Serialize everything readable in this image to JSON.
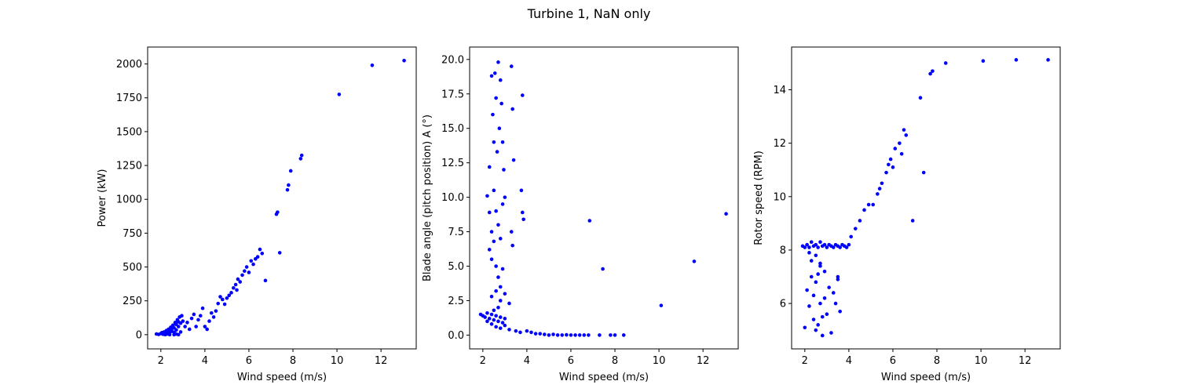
{
  "figure": {
    "title": "Turbine 1, NaN only"
  },
  "colors": {
    "point": "#0000ff",
    "axis": "#000000",
    "background": "#ffffff"
  },
  "chart_data": [
    {
      "type": "scatter",
      "xlabel": "Wind speed (m/s)",
      "ylabel": "Power (kW)",
      "xlim": [
        1.4,
        13.6
      ],
      "ylim": [
        -105,
        2125
      ],
      "xticks": [
        2,
        4,
        6,
        8,
        10,
        12
      ],
      "yticks": [
        0,
        250,
        500,
        750,
        1000,
        1250,
        1500,
        1750,
        2000
      ],
      "grid": false,
      "points": [
        [
          1.8,
          5
        ],
        [
          1.9,
          2
        ],
        [
          2.0,
          8
        ],
        [
          2.05,
          15
        ],
        [
          2.1,
          3
        ],
        [
          2.15,
          20
        ],
        [
          2.2,
          10
        ],
        [
          2.25,
          30
        ],
        [
          2.3,
          5
        ],
        [
          2.35,
          40
        ],
        [
          2.4,
          12
        ],
        [
          2.45,
          55
        ],
        [
          2.5,
          25
        ],
        [
          2.55,
          70
        ],
        [
          2.6,
          18
        ],
        [
          2.65,
          90
        ],
        [
          2.7,
          35
        ],
        [
          2.75,
          110
        ],
        [
          2.8,
          60
        ],
        [
          2.85,
          130
        ],
        [
          2.9,
          20
        ],
        [
          2.95,
          140
        ],
        [
          3.0,
          100
        ],
        [
          2.2,
          0
        ],
        [
          2.4,
          0
        ],
        [
          2.6,
          0
        ],
        [
          2.8,
          0
        ],
        [
          2.5,
          45
        ],
        [
          2.7,
          75
        ],
        [
          2.9,
          85
        ],
        [
          2.3,
          22
        ],
        [
          2.6,
          50
        ],
        [
          2.8,
          95
        ],
        [
          2.1,
          12
        ],
        [
          2.4,
          28
        ],
        [
          2.7,
          5
        ],
        [
          3.1,
          60
        ],
        [
          3.2,
          90
        ],
        [
          3.3,
          40
        ],
        [
          3.4,
          120
        ],
        [
          3.5,
          150
        ],
        [
          3.6,
          60
        ],
        [
          3.7,
          110
        ],
        [
          3.8,
          140
        ],
        [
          3.9,
          195
        ],
        [
          4.0,
          60
        ],
        [
          4.1,
          40
        ],
        [
          4.2,
          100
        ],
        [
          4.3,
          160
        ],
        [
          4.4,
          130
        ],
        [
          4.5,
          175
        ],
        [
          4.6,
          230
        ],
        [
          4.7,
          280
        ],
        [
          4.8,
          260
        ],
        [
          4.9,
          225
        ],
        [
          5.0,
          270
        ],
        [
          5.1,
          290
        ],
        [
          5.2,
          310
        ],
        [
          5.3,
          345
        ],
        [
          5.4,
          370
        ],
        [
          5.45,
          330
        ],
        [
          5.5,
          410
        ],
        [
          5.6,
          390
        ],
        [
          5.7,
          440
        ],
        [
          5.8,
          470
        ],
        [
          5.9,
          500
        ],
        [
          6.0,
          460
        ],
        [
          6.1,
          545
        ],
        [
          6.2,
          520
        ],
        [
          6.3,
          560
        ],
        [
          6.4,
          575
        ],
        [
          6.5,
          630
        ],
        [
          6.6,
          600
        ],
        [
          6.75,
          400
        ],
        [
          7.25,
          890
        ],
        [
          7.3,
          905
        ],
        [
          7.4,
          605
        ],
        [
          7.75,
          1070
        ],
        [
          7.8,
          1105
        ],
        [
          7.9,
          1210
        ],
        [
          8.35,
          1300
        ],
        [
          8.4,
          1325
        ],
        [
          10.1,
          1775
        ],
        [
          11.6,
          1990
        ],
        [
          13.05,
          2025
        ]
      ]
    },
    {
      "type": "scatter",
      "xlabel": "Wind speed (m/s)",
      "ylabel": "Blade angle (pitch position) A (°)",
      "xlim": [
        1.4,
        13.6
      ],
      "ylim": [
        -1.0,
        20.9
      ],
      "xticks": [
        2,
        4,
        6,
        8,
        10,
        12
      ],
      "yticks": [
        0.0,
        2.5,
        5.0,
        7.5,
        10.0,
        12.5,
        15.0,
        17.5,
        20.0
      ],
      "grid": false,
      "points": [
        [
          1.9,
          1.5
        ],
        [
          2.0,
          1.4
        ],
        [
          2.1,
          1.3
        ],
        [
          2.2,
          1.6
        ],
        [
          2.3,
          1.2
        ],
        [
          2.4,
          1.5
        ],
        [
          2.5,
          1.1
        ],
        [
          2.6,
          1.4
        ],
        [
          2.7,
          1.0
        ],
        [
          2.8,
          1.3
        ],
        [
          2.9,
          0.9
        ],
        [
          3.0,
          1.2
        ],
        [
          2.2,
          1.0
        ],
        [
          2.4,
          0.8
        ],
        [
          2.6,
          0.6
        ],
        [
          2.8,
          0.5
        ],
        [
          3.0,
          0.7
        ],
        [
          3.2,
          0.4
        ],
        [
          2.5,
          1.8
        ],
        [
          2.7,
          2.0
        ],
        [
          2.3,
          12.2
        ],
        [
          2.4,
          18.8
        ],
        [
          2.45,
          16.0
        ],
        [
          2.5,
          14.0
        ],
        [
          2.55,
          19.0
        ],
        [
          2.6,
          17.2
        ],
        [
          2.65,
          13.3
        ],
        [
          2.7,
          19.8
        ],
        [
          2.75,
          15.0
        ],
        [
          2.8,
          18.5
        ],
        [
          2.85,
          16.8
        ],
        [
          2.9,
          14.0
        ],
        [
          2.95,
          12.0
        ],
        [
          3.3,
          19.5
        ],
        [
          3.35,
          16.4
        ],
        [
          3.4,
          12.7
        ],
        [
          3.8,
          17.4
        ],
        [
          2.2,
          10.1
        ],
        [
          2.3,
          8.9
        ],
        [
          2.4,
          7.5
        ],
        [
          2.5,
          10.5
        ],
        [
          2.6,
          9.0
        ],
        [
          2.7,
          8.0
        ],
        [
          2.8,
          7.0
        ],
        [
          2.9,
          9.5
        ],
        [
          3.0,
          10.0
        ],
        [
          2.3,
          6.2
        ],
        [
          2.4,
          5.5
        ],
        [
          2.5,
          6.8
        ],
        [
          2.6,
          5.0
        ],
        [
          2.7,
          4.2
        ],
        [
          2.8,
          3.5
        ],
        [
          2.9,
          4.8
        ],
        [
          3.0,
          3.0
        ],
        [
          2.4,
          2.8
        ],
        [
          2.6,
          3.2
        ],
        [
          2.8,
          2.5
        ],
        [
          3.3,
          7.5
        ],
        [
          3.35,
          6.5
        ],
        [
          3.75,
          10.5
        ],
        [
          3.8,
          8.9
        ],
        [
          3.85,
          8.4
        ],
        [
          3.2,
          2.3
        ],
        [
          3.5,
          0.3
        ],
        [
          3.7,
          0.2
        ],
        [
          4.0,
          0.3
        ],
        [
          4.2,
          0.2
        ],
        [
          4.4,
          0.1
        ],
        [
          4.6,
          0.1
        ],
        [
          4.8,
          0.05
        ],
        [
          5.0,
          0.0
        ],
        [
          5.2,
          0.05
        ],
        [
          5.4,
          0.0
        ],
        [
          5.6,
          0.0
        ],
        [
          5.8,
          0.02
        ],
        [
          6.0,
          0.0
        ],
        [
          6.2,
          0.0
        ],
        [
          6.4,
          0.0
        ],
        [
          6.6,
          0.0
        ],
        [
          6.8,
          0.0
        ],
        [
          7.3,
          0.0
        ],
        [
          7.8,
          0.0
        ],
        [
          8.0,
          0.0
        ],
        [
          8.4,
          0.0
        ],
        [
          6.85,
          8.3
        ],
        [
          7.45,
          4.8
        ],
        [
          10.1,
          2.15
        ],
        [
          11.6,
          5.35
        ],
        [
          13.05,
          8.8
        ]
      ]
    },
    {
      "type": "scatter",
      "xlabel": "Wind speed (m/s)",
      "ylabel": "Rotor speed (RPM)",
      "xlim": [
        1.4,
        13.6
      ],
      "ylim": [
        4.3,
        15.6
      ],
      "xticks": [
        2,
        4,
        6,
        8,
        10,
        12
      ],
      "yticks": [
        6,
        8,
        10,
        12,
        14
      ],
      "grid": false,
      "points": [
        [
          1.9,
          8.15
        ],
        [
          2.0,
          8.1
        ],
        [
          2.1,
          8.2
        ],
        [
          2.2,
          8.1
        ],
        [
          2.3,
          8.3
        ],
        [
          2.4,
          8.15
        ],
        [
          2.5,
          8.2
        ],
        [
          2.6,
          8.1
        ],
        [
          2.7,
          8.3
        ],
        [
          2.8,
          8.15
        ],
        [
          2.9,
          8.2
        ],
        [
          3.0,
          8.1
        ],
        [
          3.1,
          8.2
        ],
        [
          3.2,
          8.15
        ],
        [
          3.3,
          8.1
        ],
        [
          3.4,
          8.2
        ],
        [
          3.5,
          8.15
        ],
        [
          3.6,
          8.1
        ],
        [
          3.7,
          8.2
        ],
        [
          3.8,
          8.15
        ],
        [
          3.9,
          8.1
        ],
        [
          4.0,
          8.2
        ],
        [
          2.0,
          5.1
        ],
        [
          2.1,
          6.5
        ],
        [
          2.2,
          5.9
        ],
        [
          2.3,
          7.0
        ],
        [
          2.4,
          5.4
        ],
        [
          2.5,
          6.8
        ],
        [
          2.6,
          5.2
        ],
        [
          2.7,
          7.4
        ],
        [
          2.8,
          4.8
        ],
        [
          2.9,
          6.2
        ],
        [
          3.0,
          5.6
        ],
        [
          2.3,
          7.6
        ],
        [
          2.5,
          7.8
        ],
        [
          2.7,
          6.0
        ],
        [
          2.9,
          7.2
        ],
        [
          2.4,
          6.3
        ],
        [
          2.6,
          7.1
        ],
        [
          2.8,
          5.5
        ],
        [
          2.2,
          7.9
        ],
        [
          2.5,
          5.0
        ],
        [
          2.7,
          7.5
        ],
        [
          3.1,
          6.6
        ],
        [
          3.2,
          4.9
        ],
        [
          3.3,
          6.4
        ],
        [
          3.4,
          6.0
        ],
        [
          3.5,
          7.0
        ],
        [
          3.6,
          5.7
        ],
        [
          3.5,
          6.9
        ],
        [
          4.1,
          8.5
        ],
        [
          4.3,
          8.8
        ],
        [
          4.5,
          9.1
        ],
        [
          4.7,
          9.5
        ],
        [
          4.9,
          9.7
        ],
        [
          5.1,
          9.7
        ],
        [
          5.3,
          10.1
        ],
        [
          5.4,
          10.3
        ],
        [
          5.5,
          10.5
        ],
        [
          5.7,
          10.9
        ],
        [
          5.8,
          11.2
        ],
        [
          5.9,
          11.4
        ],
        [
          6.0,
          11.1
        ],
        [
          6.1,
          11.8
        ],
        [
          6.3,
          12.0
        ],
        [
          6.4,
          11.6
        ],
        [
          6.5,
          12.5
        ],
        [
          6.6,
          12.3
        ],
        [
          6.9,
          9.1
        ],
        [
          7.25,
          13.7
        ],
        [
          7.4,
          10.9
        ],
        [
          7.7,
          14.6
        ],
        [
          7.8,
          14.7
        ],
        [
          8.4,
          15.0
        ],
        [
          10.1,
          15.08
        ],
        [
          11.6,
          15.12
        ],
        [
          13.05,
          15.12
        ]
      ]
    }
  ]
}
